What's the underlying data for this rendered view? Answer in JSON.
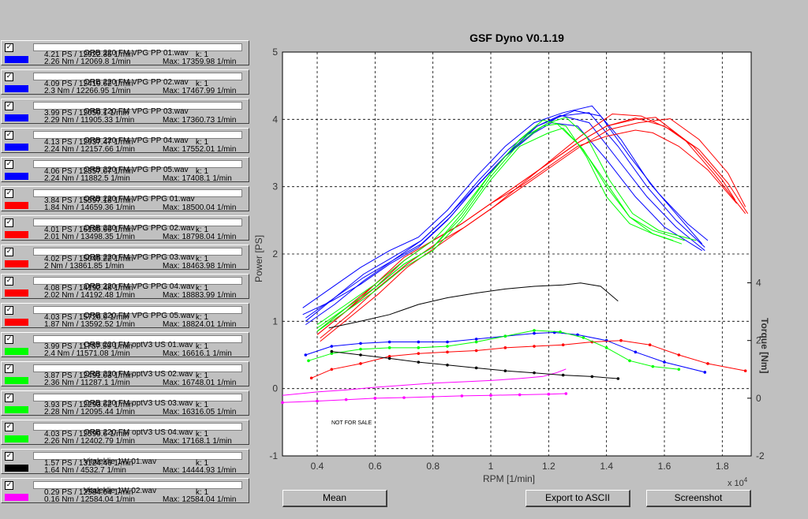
{
  "runs": [
    {
      "name": "ORB 220 FM VPG PP 01.wav",
      "line1": "4.21 PS / 12922.35 1/min",
      "line2": "2.26 Nm / 12069.8 1/min",
      "k": "k: 1",
      "max": "Max: 17359.98 1/min",
      "color": "#0000ff",
      "checked": true
    },
    {
      "name": "ORB 220 FM VPG PP 02.wav",
      "line1": "4.09 PS / 12419.62 1/min",
      "line2": "2.3 Nm / 12266.95 1/min",
      "k": "k: 1",
      "max": "Max: 17467.99 1/min",
      "color": "#0000ff",
      "checked": true
    },
    {
      "name": "ORB 220 FM VPG PP 03.wav",
      "line1": "3.99 PS / 12059.1 1/min",
      "line2": "2.29 Nm / 11905.33 1/min",
      "k": "",
      "max": "Max: 17360.73 1/min",
      "color": "#0000ff",
      "checked": true
    },
    {
      "name": "ORB 220 FM VPG PP 04.wav",
      "line1": "4.13 PS / 12937.47 1/min",
      "line2": "2.24 Nm / 12157.66 1/min",
      "k": "k: 1",
      "max": "Max: 17552.01 1/min",
      "color": "#0000ff",
      "checked": true
    },
    {
      "name": "ORB 220 FM VPG PP 05.wav",
      "line1": "4.06 PS / 12357.07 1/min",
      "line2": "2.24 Nm / 11882.5 1/min",
      "k": "k: 1",
      "max": "Max: 17408.1 1/min",
      "color": "#0000ff",
      "checked": true
    },
    {
      "name": "ORB 220 FM VPG PPG 01.wav",
      "line1": "3.84 PS / 15597.18 1/min",
      "line2": "1.84 Nm / 14659.36 1/min",
      "k": "",
      "max": "Max: 18500.04 1/min",
      "color": "#ff0000",
      "checked": true
    },
    {
      "name": "ORB 220 FM VPG PPG 02.wav",
      "line1": "4.01 PS / 16185.99 1/min",
      "line2": "2.01 Nm / 13498.35 1/min",
      "k": "k: 1",
      "max": "Max: 18798.04 1/min",
      "color": "#ff0000",
      "checked": true
    },
    {
      "name": "ORB 220 FM VPG PPG 03.wav",
      "line1": "4.02 PS / 15045.22 1/min",
      "line2": "2 Nm / 13861.85 1/min",
      "k": "k: 1",
      "max": "Max: 18463.98 1/min",
      "color": "#ff0000",
      "checked": true
    },
    {
      "name": "ORB 220 FM VPG PPG 04.wav",
      "line1": "4.08 PS / 14192.48 1/min",
      "line2": "2.02 Nm / 14192.48 1/min",
      "k": "k: 1",
      "max": "Max: 18883.99 1/min",
      "color": "#ff0000",
      "checked": true
    },
    {
      "name": "ORB 220 FM VPG PPG 05.wav",
      "line1": "4.03 PS / 15726.9 1/min",
      "line2": "1.87 Nm / 13592.52 1/min",
      "k": "k: 1",
      "max": "Max: 18824.01 1/min",
      "color": "#ff0000",
      "checked": true
    },
    {
      "name": "ORB 220 FM optV3 US 01.wav",
      "line1": "3.99 PS / 11787.59 1/min",
      "line2": "2.4 Nm / 11571.08 1/min",
      "k": "k: 1",
      "max": "Max: 16616.1 1/min",
      "color": "#00ff00",
      "checked": true
    },
    {
      "name": "ORB 220 FM optV3 US 02.wav",
      "line1": "3.87 PS / 12491.03 1/min",
      "line2": "2.36 Nm / 11287.1 1/min",
      "k": "k: 1",
      "max": "Max: 16748.01 1/min",
      "color": "#00ff00",
      "checked": true
    },
    {
      "name": "ORB 220 FM optV3 US 03.wav",
      "line1": "3.93 PS / 12293.62 1/min",
      "line2": "2.28 Nm / 12095.44 1/min",
      "k": "k: 1",
      "max": "Max: 16316.05 1/min",
      "color": "#00ff00",
      "checked": true
    },
    {
      "name": "ORB 220 FM optV3 US 04.wav",
      "line1": "4.03 PS / 12599.6 1/min",
      "line2": "2.26 Nm / 12402.79 1/min",
      "k": "k: 1",
      "max": "Max: 17168.1 1/min",
      "color": "#00ff00",
      "checked": true
    },
    {
      "name": "Vitaleklie 1W 01.wav",
      "line1": "1.57 PS / 13124.46 1/min",
      "line2": "1.64 Nm / 4532.7 1/min",
      "k": "k: 1",
      "max": "Max: 14444.93 1/min",
      "color": "#000000",
      "checked": true
    },
    {
      "name": "Vitaleklie 1W 02.wav",
      "line1": "0.29 PS / 12584.04 1/min",
      "line2": "0.16 Nm / 12584.04 1/min",
      "k": "k: 1",
      "max": "Max: 12584.04 1/min",
      "color": "#ff00ff",
      "checked": true
    }
  ],
  "plot": {
    "title": "GSF Dyno V0.1.19",
    "xlabel": "RPM [1/min]",
    "ylabel_left": "Power [PS]",
    "ylabel_right": "Torque [Nm]",
    "x_multiplier": "x 10",
    "x_multiplier_exp": "4",
    "watermark": "NOT FOR SALE",
    "x_ticks": [
      "0.4",
      "0.6",
      "0.8",
      "1",
      "1.2",
      "1.4",
      "1.6",
      "1.8"
    ],
    "y_left_ticks": [
      "-1",
      "0",
      "1",
      "2",
      "3",
      "4",
      "5"
    ],
    "y_right_ticks": [
      "-2",
      "0",
      "2",
      "4"
    ]
  },
  "chart_data": {
    "type": "line",
    "xlabel": "RPM [1/min]",
    "ylabel": "Power [PS]",
    "xlim": [
      2800,
      19000
    ],
    "ylim": [
      -1,
      5
    ],
    "y2lim": [
      -2,
      12
    ],
    "y2label": "Torque [Nm]",
    "grid": true,
    "series": [
      {
        "name": "ORB 220 FM VPG PP 01.wav",
        "axis": "power",
        "color": "#0000ff",
        "x": [
          3500,
          4500,
          5500,
          6500,
          7500,
          8500,
          9500,
          10500,
          11500,
          12500,
          13500,
          14500,
          15500,
          16500,
          17300
        ],
        "y": [
          1.2,
          1.5,
          1.8,
          2.05,
          2.25,
          2.65,
          3.15,
          3.6,
          3.95,
          4.1,
          4.2,
          3.7,
          3.05,
          2.55,
          2.15
        ]
      },
      {
        "name": "ORB 220 FM VPG PP 02.wav",
        "axis": "power",
        "color": "#0000ff",
        "x": [
          3600,
          4600,
          5600,
          6600,
          7600,
          8600,
          9600,
          10600,
          11600,
          12400,
          13400,
          14400,
          15400,
          16400,
          17400
        ],
        "y": [
          1.0,
          1.35,
          1.65,
          1.9,
          2.15,
          2.55,
          3.05,
          3.5,
          3.85,
          4.05,
          4.1,
          3.6,
          3.0,
          2.5,
          2.1
        ]
      },
      {
        "name": "ORB 220 FM VPG PP 03.wav",
        "axis": "power",
        "color": "#0000ff",
        "x": [
          3500,
          4500,
          5500,
          6500,
          7500,
          8500,
          9500,
          10500,
          11500,
          12100,
          13000,
          14000,
          15000,
          16000,
          17300
        ],
        "y": [
          1.1,
          1.3,
          1.55,
          1.85,
          2.1,
          2.5,
          3.0,
          3.45,
          3.8,
          3.95,
          3.9,
          3.4,
          2.85,
          2.4,
          2.05
        ]
      },
      {
        "name": "ORB 220 FM VPG PP 04.wav",
        "axis": "power",
        "color": "#0000ff",
        "x": [
          3600,
          4600,
          5600,
          6600,
          7600,
          8600,
          9600,
          10600,
          11600,
          12900,
          13800,
          14800,
          15800,
          16800,
          17500
        ],
        "y": [
          0.95,
          1.25,
          1.6,
          1.9,
          2.2,
          2.6,
          3.1,
          3.55,
          3.9,
          4.13,
          4.05,
          3.45,
          2.9,
          2.45,
          2.2
        ]
      },
      {
        "name": "ORB 220 FM VPG PP 05.wav",
        "axis": "power",
        "color": "#0000ff",
        "x": [
          3600,
          4600,
          5600,
          6600,
          7600,
          8600,
          9600,
          10600,
          11600,
          12400,
          13400,
          14400,
          15400,
          16400,
          17400
        ],
        "y": [
          1.05,
          1.35,
          1.7,
          1.95,
          2.2,
          2.6,
          3.05,
          3.5,
          3.9,
          4.06,
          3.95,
          3.4,
          2.85,
          2.4,
          2.05
        ]
      },
      {
        "name": "ORB 220 FM VPG PPG 01.wav",
        "axis": "power",
        "color": "#ff0000",
        "x": [
          4000,
          5000,
          6000,
          7000,
          8000,
          9000,
          10000,
          11000,
          12000,
          13000,
          14000,
          15000,
          15600,
          16500,
          17500,
          18500
        ],
        "y": [
          0.85,
          1.2,
          1.55,
          1.95,
          2.2,
          2.45,
          2.75,
          3.0,
          3.3,
          3.6,
          3.75,
          3.84,
          3.8,
          3.6,
          3.25,
          2.75
        ]
      },
      {
        "name": "ORB 220 FM VPG PPG 02.wav",
        "axis": "power",
        "color": "#ff0000",
        "x": [
          4100,
          5100,
          6100,
          7100,
          8100,
          9100,
          10100,
          11100,
          12100,
          13100,
          14100,
          15100,
          16200,
          17200,
          18200,
          18800
        ],
        "y": [
          0.75,
          1.1,
          1.5,
          1.85,
          2.15,
          2.4,
          2.7,
          3.0,
          3.3,
          3.6,
          3.85,
          3.95,
          4.01,
          3.7,
          3.2,
          2.7
        ]
      },
      {
        "name": "ORB 220 FM VPG PPG 03.wav",
        "axis": "power",
        "color": "#ff0000",
        "x": [
          4000,
          5000,
          6000,
          7000,
          8000,
          9000,
          10000,
          11000,
          12000,
          13000,
          14000,
          15000,
          16000,
          17000,
          18000,
          18450
        ],
        "y": [
          0.8,
          1.15,
          1.5,
          1.9,
          2.2,
          2.45,
          2.75,
          3.05,
          3.35,
          3.65,
          3.9,
          4.02,
          3.9,
          3.6,
          3.1,
          2.8
        ]
      },
      {
        "name": "ORB 220 FM VPG PPG 04.wav",
        "axis": "power",
        "color": "#ff0000",
        "x": [
          4100,
          5100,
          6100,
          7100,
          8100,
          9100,
          10100,
          11100,
          12100,
          13100,
          14200,
          15200,
          16200,
          17200,
          18200,
          18880
        ],
        "y": [
          0.7,
          1.05,
          1.4,
          1.8,
          2.1,
          2.4,
          2.7,
          3.05,
          3.4,
          3.75,
          4.08,
          4.05,
          3.85,
          3.55,
          3.05,
          2.6
        ]
      },
      {
        "name": "ORB 220 FM VPG PPG 05.wav",
        "axis": "power",
        "color": "#ff0000",
        "x": [
          4000,
          5000,
          6000,
          7000,
          8000,
          9000,
          10000,
          11000,
          12000,
          13000,
          14000,
          15000,
          15700,
          16700,
          17700,
          18800
        ],
        "y": [
          0.8,
          1.15,
          1.55,
          1.9,
          2.2,
          2.45,
          2.75,
          3.05,
          3.35,
          3.65,
          3.9,
          4.0,
          4.03,
          3.7,
          3.2,
          2.6
        ]
      },
      {
        "name": "ORB 220 FM optV3 US 01.wav",
        "axis": "power",
        "color": "#00ff00",
        "x": [
          4000,
          5000,
          6000,
          7000,
          8000,
          9000,
          10000,
          11000,
          11800,
          12600,
          13300,
          14000,
          14800,
          15600,
          16600
        ],
        "y": [
          0.9,
          1.2,
          1.5,
          1.85,
          2.1,
          2.6,
          3.2,
          3.7,
          3.99,
          3.9,
          3.45,
          2.85,
          2.45,
          2.3,
          2.15
        ]
      },
      {
        "name": "ORB 220 FM optV3 US 02.wav",
        "axis": "power",
        "color": "#00ff00",
        "x": [
          4000,
          5000,
          6000,
          7000,
          8000,
          9000,
          10000,
          11000,
          12000,
          12500,
          13200,
          14000,
          14800,
          15600,
          16700
        ],
        "y": [
          0.85,
          1.15,
          1.45,
          1.8,
          2.05,
          2.5,
          3.1,
          3.6,
          3.8,
          3.87,
          3.55,
          3.0,
          2.55,
          2.35,
          2.2
        ]
      },
      {
        "name": "ORB 220 FM optV3 US 03.wav",
        "axis": "power",
        "color": "#00ff00",
        "x": [
          4000,
          5000,
          6000,
          7000,
          8000,
          9000,
          10000,
          11000,
          11800,
          12300,
          13100,
          14000,
          14800,
          15600,
          16300
        ],
        "y": [
          0.85,
          1.2,
          1.5,
          1.85,
          2.1,
          2.55,
          3.15,
          3.65,
          3.9,
          3.93,
          3.6,
          3.05,
          2.55,
          2.3,
          2.2
        ]
      },
      {
        "name": "ORB 220 FM optV3 US 04.wav",
        "axis": "power",
        "color": "#00ff00",
        "x": [
          4000,
          5000,
          6000,
          7000,
          8000,
          9000,
          10000,
          11000,
          12000,
          12600,
          13300,
          14100,
          14900,
          15800,
          17100
        ],
        "y": [
          0.95,
          1.25,
          1.55,
          1.9,
          2.2,
          2.65,
          3.2,
          3.7,
          3.95,
          4.03,
          3.75,
          3.1,
          2.6,
          2.35,
          2.2
        ]
      },
      {
        "name": "Vitaleklie 1W 01.wav",
        "axis": "power",
        "color": "#000000",
        "x": [
          4400,
          5500,
          6500,
          7500,
          8500,
          9500,
          10500,
          11500,
          12500,
          13100,
          13800,
          14400
        ],
        "y": [
          0.9,
          1.0,
          1.1,
          1.25,
          1.35,
          1.42,
          1.48,
          1.52,
          1.54,
          1.57,
          1.52,
          1.3
        ]
      },
      {
        "name": "Vitaleklie 1W 02.wav",
        "axis": "power",
        "color": "#ff00ff",
        "x": [
          2800,
          4000,
          5000,
          6000,
          7000,
          8000,
          9000,
          10000,
          11000,
          11800,
          12300,
          12600
        ],
        "y": [
          -0.1,
          -0.05,
          -0.02,
          0.02,
          0.05,
          0.08,
          0.1,
          0.12,
          0.15,
          0.18,
          0.24,
          0.29
        ]
      },
      {
        "name": "ORB 220 FM VPG PP (torque)",
        "axis": "torque",
        "color": "#0000ff",
        "x": [
          3600,
          4500,
          5500,
          6500,
          7500,
          8500,
          9500,
          10500,
          11500,
          12200,
          13000,
          14000,
          15000,
          16000,
          17400
        ],
        "y": [
          1.5,
          1.8,
          1.9,
          1.95,
          1.95,
          1.95,
          2.05,
          2.15,
          2.25,
          2.28,
          2.2,
          2.0,
          1.6,
          1.25,
          0.9
        ]
      },
      {
        "name": "ORB 220 FM VPG PPG (torque)",
        "axis": "torque",
        "color": "#ff0000",
        "x": [
          3800,
          4500,
          5500,
          6500,
          7500,
          8500,
          9500,
          10500,
          11500,
          12500,
          13500,
          14500,
          15500,
          16500,
          17500,
          18800
        ],
        "y": [
          0.7,
          1.0,
          1.2,
          1.45,
          1.55,
          1.6,
          1.65,
          1.75,
          1.8,
          1.85,
          1.95,
          2.0,
          1.85,
          1.5,
          1.2,
          0.95
        ]
      },
      {
        "name": "ORB 220 FM optV3 US (torque)",
        "axis": "torque",
        "color": "#00ff00",
        "x": [
          3700,
          4500,
          5500,
          6500,
          7500,
          8500,
          9500,
          10500,
          11500,
          12400,
          13200,
          14000,
          14800,
          15600,
          16500
        ],
        "y": [
          1.3,
          1.55,
          1.7,
          1.75,
          1.75,
          1.8,
          1.95,
          2.15,
          2.35,
          2.3,
          2.1,
          1.75,
          1.3,
          1.1,
          1.0
        ]
      },
      {
        "name": "Vitaleklie 1W 01.wav (torque)",
        "axis": "torque",
        "color": "#000000",
        "x": [
          4500,
          5500,
          6500,
          7500,
          8500,
          9500,
          10500,
          11500,
          12500,
          13500,
          14400
        ],
        "y": [
          1.62,
          1.5,
          1.38,
          1.25,
          1.15,
          1.05,
          0.95,
          0.88,
          0.8,
          0.75,
          0.68
        ]
      },
      {
        "name": "Vitaleklie 1W 02.wav (torque)",
        "axis": "torque",
        "color": "#ff00ff",
        "x": [
          2800,
          4000,
          5000,
          6000,
          7000,
          8000,
          9000,
          10000,
          11000,
          12000,
          12600
        ],
        "y": [
          -0.15,
          -0.1,
          -0.05,
          0.0,
          0.02,
          0.05,
          0.08,
          0.1,
          0.12,
          0.14,
          0.16
        ]
      }
    ]
  },
  "buttons": {
    "mean": "Mean",
    "export": "Export to ASCII",
    "screenshot": "Screenshot"
  }
}
